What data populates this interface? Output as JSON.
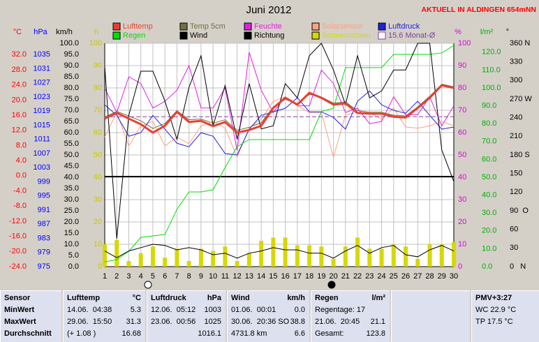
{
  "chart_data": {
    "type": "line",
    "title": "Juni 2012",
    "note": "AKTUELL IN ALDINGEN 654mNN",
    "x": [
      1,
      2,
      3,
      4,
      5,
      6,
      7,
      8,
      9,
      10,
      11,
      12,
      13,
      14,
      15,
      16,
      17,
      18,
      19,
      20,
      21,
      22,
      23,
      24,
      25,
      26,
      27,
      28,
      29,
      30
    ],
    "xlim": [
      1,
      30
    ],
    "xticks": [
      1,
      2,
      3,
      4,
      5,
      6,
      7,
      8,
      9,
      10,
      11,
      12,
      13,
      14,
      15,
      16,
      17,
      18,
      19,
      20,
      21,
      22,
      23,
      24,
      25,
      26,
      27,
      28,
      29,
      30
    ],
    "grid": true,
    "axes": [
      {
        "label": "°C",
        "color": "#ff0000",
        "lim": [
          -24,
          35
        ],
        "ticks": [
          {
            "value": 32,
            "label": "32.0"
          },
          {
            "value": 28,
            "label": "28.0"
          },
          {
            "value": 24,
            "label": "24.0"
          },
          {
            "value": 20,
            "label": "20.0"
          },
          {
            "value": 16,
            "label": "16.0"
          },
          {
            "value": 12,
            "label": "12.0"
          },
          {
            "value": 8,
            "label": "8.0"
          },
          {
            "value": 4,
            "label": "4.0"
          },
          {
            "value": 0,
            "label": "0.0"
          },
          {
            "value": -4,
            "label": "-4.0"
          },
          {
            "value": -8,
            "label": "-8.0"
          },
          {
            "value": -12,
            "label": "-12.0"
          },
          {
            "value": -16,
            "label": "-16.0"
          },
          {
            "value": -20,
            "label": "-20.0"
          },
          {
            "value": -24,
            "label": "-24.0"
          }
        ]
      },
      {
        "label": "hPa",
        "color": "#0000ff",
        "lim": [
          975,
          1038.2
        ],
        "ticks": [
          1035,
          1031,
          1027,
          1023,
          1019,
          1015,
          1011,
          1007,
          1003,
          999,
          995,
          991,
          987,
          983,
          979,
          975
        ]
      },
      {
        "label": "km/h",
        "color": "#000000",
        "lim": [
          0,
          100
        ],
        "ticks": [
          {
            "value": 100,
            "label": "100.0"
          },
          {
            "value": 95,
            "label": "95.0"
          },
          {
            "value": 90,
            "label": "90.0"
          },
          {
            "value": 85,
            "label": "85.0"
          },
          {
            "value": 80,
            "label": "80.0"
          },
          {
            "value": 75,
            "label": "75.0"
          },
          {
            "value": 70,
            "label": "70.0"
          },
          {
            "value": 65,
            "label": "65.0"
          },
          {
            "value": 60,
            "label": "60.0"
          },
          {
            "value": 55,
            "label": "55.0"
          },
          {
            "value": 50,
            "label": "50.0"
          },
          {
            "value": 45,
            "label": "45.0"
          },
          {
            "value": 40,
            "label": "40.0"
          },
          {
            "value": 35,
            "label": "35.0"
          },
          {
            "value": 30,
            "label": "30.0"
          },
          {
            "value": 25,
            "label": "25.0"
          },
          {
            "value": 20,
            "label": "20.0"
          },
          {
            "value": 15,
            "label": "15.0"
          },
          {
            "value": 10,
            "label": "10.0"
          },
          {
            "value": 5,
            "label": "5.0"
          },
          {
            "value": 0,
            "label": "0.0"
          }
        ]
      },
      {
        "label": "h",
        "color": "#c8c800",
        "lim": [
          0,
          100
        ],
        "ticks": [
          100,
          90,
          80,
          70,
          60,
          50,
          40,
          30,
          20,
          10,
          0
        ]
      },
      {
        "label": "%",
        "color": "#e000e0",
        "lim": [
          0,
          100
        ],
        "ticks": [
          100,
          90,
          80,
          70,
          60,
          50,
          40,
          30,
          20,
          10,
          0
        ]
      },
      {
        "label": "l/m²",
        "color": "#00b000",
        "lim": [
          0,
          125
        ],
        "ticks": [
          {
            "value": 120,
            "label": "120.0"
          },
          {
            "value": 110,
            "label": "110.0"
          },
          {
            "value": 100,
            "label": "100.0"
          },
          {
            "value": 90,
            "label": "90.0"
          },
          {
            "value": 80,
            "label": "80.0"
          },
          {
            "value": 70,
            "label": "70.0"
          },
          {
            "value": 60,
            "label": "60.0"
          },
          {
            "value": 50,
            "label": "50.0"
          },
          {
            "value": 40,
            "label": "40.0"
          },
          {
            "value": 30,
            "label": "30.0"
          },
          {
            "value": 20,
            "label": "20.0"
          },
          {
            "value": 10,
            "label": "10.0"
          },
          {
            "value": 0,
            "label": "0.0"
          }
        ]
      },
      {
        "label": "°",
        "color": "#000000",
        "lim": [
          0,
          360
        ],
        "ticks": [
          {
            "value": 360,
            "label": "360 N"
          },
          330,
          300,
          {
            "value": 270,
            "label": "270 W"
          },
          240,
          210,
          {
            "value": 180,
            "label": "180 S"
          },
          150,
          120,
          {
            "value": 90,
            "label": "90  O"
          },
          60,
          30,
          {
            "value": 0,
            "label": "0   N"
          }
        ]
      }
    ],
    "series": [
      {
        "name": "Lufttemp",
        "color": "#e84030",
        "axis": "°C",
        "values": [
          15.1,
          16.6,
          15.1,
          13.6,
          11.4,
          13.2,
          16.9,
          14.2,
          14.5,
          13.1,
          14.2,
          11.4,
          12.1,
          13.2,
          17.9,
          20.6,
          18.8,
          21.9,
          20.6,
          18.8,
          19.1,
          16.6,
          16.4,
          16.4,
          15.6,
          15.4,
          17.9,
          20.6,
          23.9,
          23.2
        ]
      },
      {
        "name": "Temp 5cm",
        "color": "#707040",
        "axis": "°C",
        "values": [
          15.5,
          17.0,
          15.8,
          14.5,
          12.5,
          13.8,
          17.2,
          14.8,
          15.0,
          13.9,
          14.8,
          12.0,
          12.8,
          14.0,
          18.2,
          20.2,
          19.0,
          21.5,
          20.8,
          19.2,
          19.5,
          17.2,
          16.8,
          16.8,
          16.0,
          15.8,
          18.2,
          21.0,
          24.2,
          23.5
        ]
      },
      {
        "name": "Feuchte",
        "color": "#e020e0",
        "axis": "%",
        "values": [
          80,
          69,
          85,
          82,
          71,
          74,
          79,
          90,
          71,
          71,
          80,
          52,
          96,
          79,
          69,
          76,
          72,
          72,
          88,
          82,
          69,
          71,
          64,
          65,
          76,
          68,
          68,
          76,
          63,
          72
        ]
      },
      {
        "name": "Solarsensor",
        "color": "#ffa080",
        "axis": "%",
        "values": [
          58,
          69,
          54,
          63,
          65,
          54,
          58,
          55,
          63,
          65,
          62,
          49,
          62,
          66,
          74,
          76,
          72,
          69,
          69,
          49,
          68,
          69,
          69,
          66,
          71,
          62.5,
          62,
          63,
          65,
          63
        ]
      },
      {
        "name": "Luftdruck",
        "color": "#2020e0",
        "axis": "hPa",
        "values": [
          1020.8,
          1017.8,
          1011.9,
          1012.9,
          1017.8,
          1013.9,
          1009.9,
          1008.9,
          1012.9,
          1011.9,
          1007,
          1006.6,
          1013.9,
          1017.8,
          1018.8,
          1019.8,
          1022.8,
          1018.8,
          1018.8,
          1017.2,
          1013.9,
          1021.8,
          1024.7,
          1020.8,
          1019.2,
          1018.4,
          1021.8,
          1017.8,
          1013.9,
          1014.5
        ]
      },
      {
        "name": "Regen",
        "color": "#00e000",
        "axis": "l/m²",
        "values": [
          2.7,
          3.9,
          8.6,
          16.4,
          17.2,
          18,
          32.1,
          41.8,
          41.8,
          43,
          55.5,
          67.2,
          71.1,
          71.1,
          71.1,
          71.1,
          71.1,
          71.1,
          86.8,
          88.7,
          111.4,
          111.4,
          111.4,
          111.4,
          118.8,
          118.8,
          118.8,
          118.8,
          119.6,
          123.8
        ]
      },
      {
        "name": "Wind",
        "color": "#000000",
        "axis": "km/h",
        "values": [
          7,
          4,
          7,
          8.5,
          10,
          9.5,
          7.5,
          8.5,
          7.5,
          5.3,
          6,
          3.8,
          6,
          7,
          8.5,
          7.5,
          7.5,
          6,
          6,
          3.8,
          7,
          9.5,
          6,
          8.5,
          9.5,
          5.3,
          4.4,
          7.5,
          9.5,
          7
        ]
      },
      {
        "name": "Richtung",
        "color": "#000000",
        "axis": "°",
        "values": [
          323,
          45,
          244,
          315,
          315,
          267,
          205,
          289,
          340,
          227,
          292,
          205,
          295,
          222,
          227,
          295,
          272,
          340,
          360,
          317,
          261,
          340,
          272,
          283,
          317,
          317,
          360,
          360,
          188,
          137
        ]
      },
      {
        "name": "Sonnenschein",
        "color": "#d8d800",
        "axis": "h",
        "style": "bar",
        "values": [
          10,
          12,
          2.5,
          6,
          9,
          4,
          8,
          2.5,
          8,
          7,
          9,
          2.5,
          6,
          11.5,
          13,
          13,
          9.5,
          9.5,
          9,
          3.5,
          9,
          13,
          8,
          8,
          10,
          9,
          3.5,
          10,
          10,
          11
        ]
      },
      {
        "name": "15.6 Monat-Ø",
        "color": "#8040a0",
        "axis": "°C",
        "style": "mean",
        "value": 15.6
      }
    ]
  },
  "table": {
    "header": [
      {
        "left": "Sensor"
      },
      {
        "left": "Lufttemp",
        "right": "°C"
      },
      {
        "left": "Luftdruck",
        "right": "hPa"
      },
      {
        "left": "Wind",
        "right": "km/h"
      },
      {
        "left": "Regen",
        "right": "l/m²"
      },
      {},
      {
        "left": "PMV+3:27"
      }
    ],
    "rows": [
      [
        {
          "left": "MinWert"
        },
        {
          "left": "14.06.  04:38",
          "right": "5.3"
        },
        {
          "left": "12.06.  05:12",
          "right": "1003"
        },
        {
          "left": "01.06.  00:01",
          "right": "0.0"
        },
        {
          "left": "Regentage: 17"
        },
        {},
        {
          "left": "WC 22.9 °C"
        }
      ],
      [
        {
          "left": "MaxWert"
        },
        {
          "left": "29.06.  15:50",
          "right": "31.3"
        },
        {
          "left": "23.06.  00:56",
          "right": "1025"
        },
        {
          "left": "30.06.  20:36 SO",
          "right": "38.8"
        },
        {
          "left": "21.06.  20:45",
          "right": "21.1"
        },
        {},
        {
          "left": "TP 17.5 °C"
        }
      ],
      [
        {
          "left": "Durchschnitt"
        },
        {
          "left": "(+ 1.08 )",
          "right": "16.68"
        },
        {
          "right": "1016.1"
        },
        {
          "left": "4731.8 km",
          "right": "6.6"
        },
        {
          "left": "Gesamt:",
          "right": "123.8"
        },
        {},
        {}
      ]
    ]
  }
}
